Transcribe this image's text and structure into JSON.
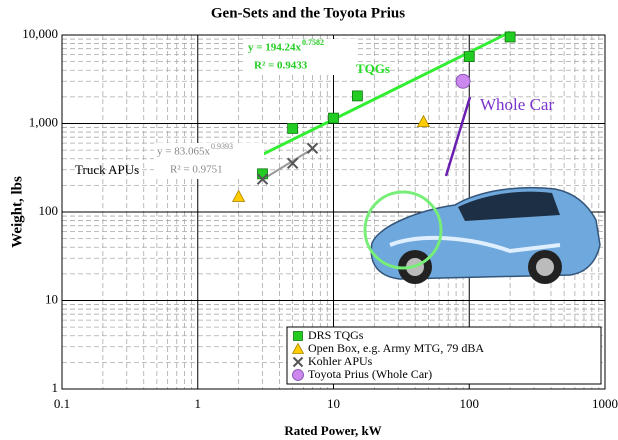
{
  "chart_data": {
    "type": "scatter",
    "title": "Gen-Sets and the Toyota Prius",
    "x_label": "Rated Power, kW",
    "y_label": "Weight, lbs",
    "log_x": true,
    "log_y": true,
    "grid": true,
    "xlim": [
      0.1,
      1000
    ],
    "ylim": [
      1,
      10000
    ],
    "xticks": [
      0.1,
      1,
      10,
      100,
      1000
    ],
    "yticks": [
      1,
      10,
      100,
      {
        "value": 1000,
        "label": "1,000"
      },
      {
        "value": 10000,
        "label": "10,000"
      }
    ],
    "series": [
      {
        "name": "DRS TQGs",
        "color": "#22cc22",
        "marker": "square",
        "x": [
          3,
          5,
          10,
          15,
          100,
          200
        ],
        "values": [
          270,
          880,
          1150,
          2050,
          5700,
          9500
        ],
        "fit": {
          "coef": 194.24,
          "exp": 0.7582,
          "label": "y = 194.24x",
          "exponent_label": "0.7582",
          "r2_label": "R² = 0.9433",
          "color": "#33ee33"
        }
      },
      {
        "name": "Open Box, e.g. Army MTG, 79 dBA",
        "color": "#ffcc00",
        "marker": "triangle",
        "x": [
          2,
          46
        ],
        "values": [
          150,
          1050
        ]
      },
      {
        "name": "Kohler APUs",
        "color": "#555555",
        "marker": "x",
        "x": [
          3,
          5,
          7
        ],
        "values": [
          235,
          355,
          525
        ],
        "fit": {
          "coef": 83.065,
          "exp": 0.9393,
          "label": "y = 83.065x",
          "exponent_label": "0.9393",
          "r2_label": "R² = 0.9751",
          "color": "#999999"
        }
      },
      {
        "name": "Toyota Prius (Whole Car)",
        "color": "#cc88ee",
        "marker": "circle",
        "x": [
          90
        ],
        "values": [
          3000
        ]
      }
    ],
    "annotations": {
      "tqgs": "TQGs",
      "whole_car": "Whole Car",
      "truck_apus": "Truck APUs"
    }
  }
}
